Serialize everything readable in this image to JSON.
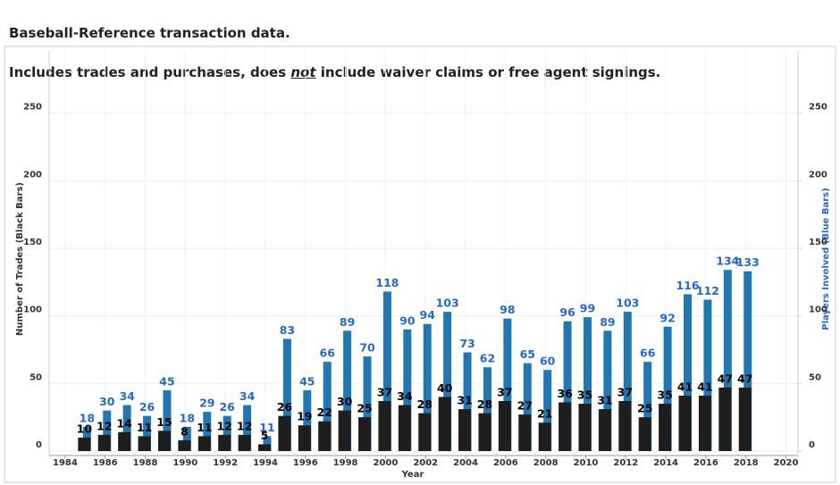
{
  "chart_data": {
    "type": "bar",
    "title": "Baseball-Reference transaction data.",
    "subtitle": [
      "Includes trades and purchases, does ",
      "not",
      " include waiver claims or free agent signings."
    ],
    "x_label": "Year",
    "y_label": "Number of Trades (Black Bars)",
    "y2_label": "Players Involved (Blue Bars)",
    "x": [
      1985,
      1986,
      1987,
      1988,
      1989,
      1990,
      1991,
      1992,
      1993,
      1994,
      1995,
      1996,
      1997,
      1998,
      1999,
      2000,
      2001,
      2002,
      2003,
      2004,
      2005,
      2006,
      2007,
      2008,
      2009,
      2010,
      2011,
      2012,
      2013,
      2014,
      2015,
      2016,
      2017,
      2018
    ],
    "series": [
      {
        "name": "Number of Trades",
        "color": "#1e1e1e",
        "label_color": "#000000",
        "values": [
          10,
          12,
          14,
          11,
          15,
          8,
          11,
          12,
          12,
          5,
          26,
          19,
          22,
          30,
          25,
          37,
          34,
          28,
          40,
          31,
          28,
          37,
          27,
          21,
          36,
          35,
          31,
          37,
          25,
          35,
          41,
          41,
          47,
          47
        ]
      },
      {
        "name": "Players Involved",
        "color": "#1f77b4",
        "label_color": "#2468d8",
        "axis": "y2",
        "values": [
          18,
          30,
          34,
          26,
          45,
          18,
          29,
          26,
          34,
          11,
          83,
          45,
          66,
          89,
          70,
          118,
          90,
          94,
          103,
          73,
          62,
          98,
          65,
          60,
          96,
          99,
          89,
          103,
          66,
          92,
          116,
          112,
          134,
          133
        ]
      }
    ],
    "xlim": [
      1983.2,
      2020.6
    ],
    "xticks": [
      1984,
      1986,
      1988,
      1990,
      1992,
      1994,
      1996,
      1998,
      2000,
      2002,
      2004,
      2006,
      2008,
      2010,
      2012,
      2014,
      2016,
      2018,
      2020
    ],
    "ylim": [
      0,
      296
    ],
    "yticks": [
      0,
      50,
      100,
      150,
      200,
      250
    ],
    "y2lim": [
      0,
      296
    ],
    "y2ticks": [
      0,
      50,
      100,
      150,
      200,
      250
    ],
    "grid": true
  }
}
